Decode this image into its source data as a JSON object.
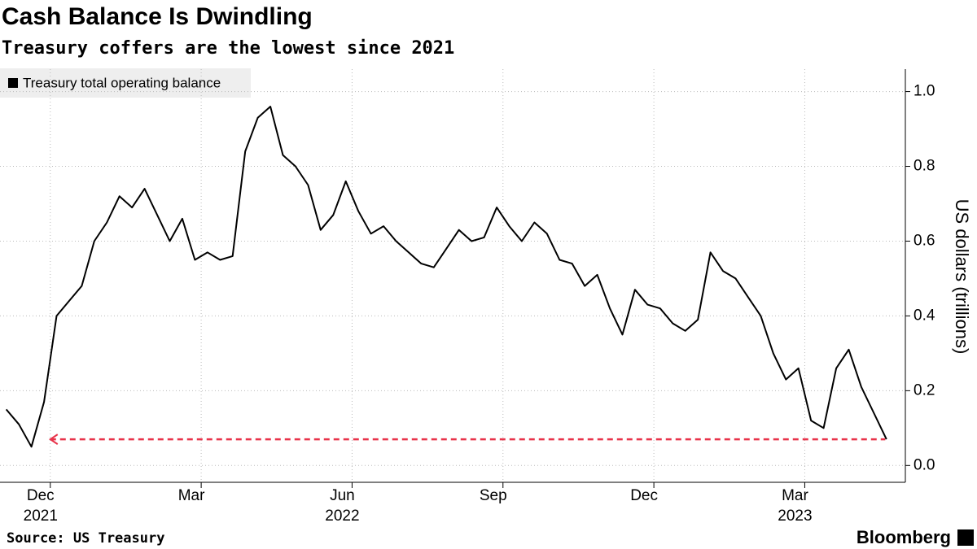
{
  "chart_data": {
    "type": "line",
    "title": "Cash Balance Is Dwindling",
    "subtitle": "Treasury coffers are the lowest since 2021",
    "y_label": "US dollars (trillions)",
    "source": "Source: US Treasury",
    "brand": "Bloomberg",
    "x": [
      "2021-11",
      "2021-11",
      "2021-11",
      "2021-11",
      "2021-12",
      "2021-12",
      "2021-12",
      "2021-12",
      "2022-01",
      "2022-01",
      "2022-01",
      "2022-01",
      "2022-02",
      "2022-02",
      "2022-02",
      "2022-02",
      "2022-03",
      "2022-03",
      "2022-03",
      "2022-03",
      "2022-04",
      "2022-04",
      "2022-04",
      "2022-04",
      "2022-05",
      "2022-05",
      "2022-05",
      "2022-05",
      "2022-06",
      "2022-06",
      "2022-06",
      "2022-06",
      "2022-07",
      "2022-07",
      "2022-07",
      "2022-07",
      "2022-08",
      "2022-08",
      "2022-08",
      "2022-08",
      "2022-09",
      "2022-09",
      "2022-09",
      "2022-09",
      "2022-10",
      "2022-10",
      "2022-10",
      "2022-10",
      "2022-11",
      "2022-11",
      "2022-11",
      "2022-11",
      "2022-12",
      "2022-12",
      "2022-12",
      "2022-12",
      "2023-01",
      "2023-01",
      "2023-01",
      "2023-01",
      "2023-02",
      "2023-02",
      "2023-02",
      "2023-02",
      "2023-03",
      "2023-03",
      "2023-03",
      "2023-03",
      "2023-04",
      "2023-04",
      "2023-04"
    ],
    "series": [
      {
        "name": "Treasury total operating balance",
        "color": "#000000",
        "values": [
          0.15,
          0.11,
          0.05,
          0.17,
          0.4,
          0.44,
          0.48,
          0.6,
          0.65,
          0.72,
          0.69,
          0.74,
          0.67,
          0.6,
          0.66,
          0.55,
          0.57,
          0.55,
          0.56,
          0.84,
          0.93,
          0.96,
          0.83,
          0.8,
          0.75,
          0.63,
          0.67,
          0.76,
          0.68,
          0.62,
          0.64,
          0.6,
          0.57,
          0.54,
          0.53,
          0.58,
          0.63,
          0.6,
          0.61,
          0.69,
          0.64,
          0.6,
          0.65,
          0.62,
          0.55,
          0.54,
          0.48,
          0.51,
          0.42,
          0.35,
          0.47,
          0.43,
          0.42,
          0.38,
          0.36,
          0.39,
          0.57,
          0.52,
          0.5,
          0.45,
          0.4,
          0.3,
          0.23,
          0.26,
          0.12,
          0.1,
          0.26,
          0.31,
          0.21,
          0.14,
          0.07
        ]
      }
    ],
    "xlim": [
      "2021-11",
      "2023-05"
    ],
    "xticks": [
      {
        "value": "2021-12",
        "label": "Dec"
      },
      {
        "value": "2022-03",
        "label": "Mar"
      },
      {
        "value": "2022-06",
        "label": "Jun"
      },
      {
        "value": "2022-09",
        "label": "Sep"
      },
      {
        "value": "2022-12",
        "label": "Dec"
      },
      {
        "value": "2023-03",
        "label": "Mar"
      }
    ],
    "xtick_years": [
      {
        "value": "2021-12",
        "label": "2021"
      },
      {
        "value": "2022-06",
        "label": "2022"
      },
      {
        "value": "2023-03",
        "label": "2023"
      }
    ],
    "ylim": [
      -0.045,
      1.06
    ],
    "yticks": [
      {
        "value": 0,
        "label": "0.0"
      },
      0.2,
      0.4,
      0.6,
      0.8,
      {
        "value": 1,
        "label": "1.0"
      }
    ],
    "grid": true,
    "reference_line": {
      "value": 0.07,
      "color": "#e8334a"
    }
  }
}
